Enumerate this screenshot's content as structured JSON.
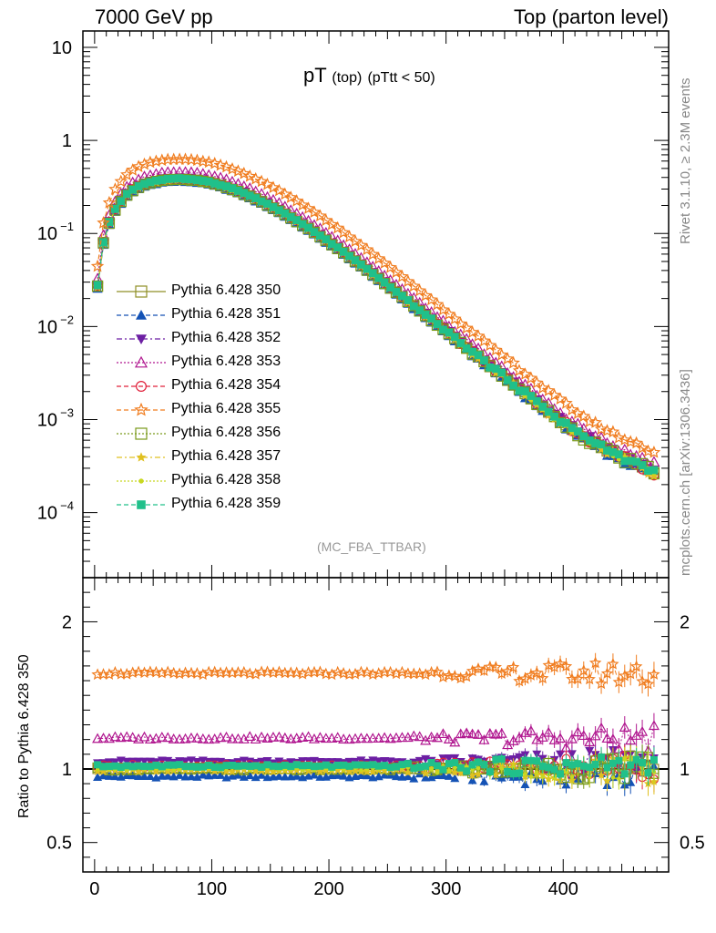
{
  "header": {
    "left": "7000 GeV pp",
    "right": "Top (parton level)"
  },
  "side_text": {
    "rivet": "Rivet 3.1.10, ≥ 2.3M events",
    "mcplots": "mcplots.cern.ch [arXiv:1306.3436]"
  },
  "title": {
    "main": "pT",
    "sub1": "(top)",
    "sub2": "(pTtt < 50)"
  },
  "analysis_label": "(MC_FBA_TTBAR)",
  "ratio_ylabel": "Ratio to Pythia 6.428 350",
  "chart_data": [
    {
      "type": "line",
      "title": "pT (top) (pTtt < 50)",
      "xlabel": "",
      "ylabel": "",
      "yscale": "log",
      "xlim": [
        -10,
        490
      ],
      "ylim": [
        2e-05,
        15
      ],
      "x_ticks": [
        "0",
        "100",
        "200",
        "300",
        "400"
      ],
      "y_ticks": [
        "10",
        "1",
        "10^-1",
        "10^-2",
        "10^-3",
        "10^-4"
      ],
      "legend_placement": "left-middle",
      "reference": {
        "x": [
          2.5,
          7.5,
          12.5,
          17.5,
          22.5,
          27.5,
          32.5,
          37.5,
          42.5,
          47.5,
          52.5,
          57.5,
          62.5,
          67.5,
          72.5,
          77.5,
          82.5,
          87.5,
          92.5,
          97.5,
          102.5,
          107.5,
          112.5,
          117.5,
          122.5,
          127.5,
          132.5,
          137.5,
          142.5,
          147.5,
          152.5,
          157.5,
          162.5,
          167.5,
          172.5,
          177.5,
          182.5,
          187.5,
          192.5,
          197.5,
          202.5,
          207.5,
          212.5,
          217.5,
          222.5,
          227.5,
          232.5,
          237.5,
          242.5,
          247.5,
          252.5,
          257.5,
          262.5,
          267.5,
          272.5,
          277.5,
          282.5,
          287.5,
          292.5,
          297.5,
          302.5,
          307.5,
          312.5,
          317.5,
          322.5,
          327.5,
          332.5,
          337.5,
          342.5,
          347.5,
          352.5,
          357.5,
          362.5,
          367.5,
          372.5,
          377.5,
          382.5,
          387.5,
          392.5,
          397.5,
          402.5,
          407.5,
          412.5,
          417.5,
          422.5,
          427.5,
          432.5,
          437.5,
          442.5,
          447.5,
          452.5,
          457.5,
          462.5,
          467.5,
          472.5,
          477.5
        ],
        "y": [
          0.027,
          0.079,
          0.13,
          0.18,
          0.22,
          0.26,
          0.29,
          0.315,
          0.335,
          0.35,
          0.36,
          0.37,
          0.375,
          0.378,
          0.38,
          0.378,
          0.375,
          0.37,
          0.362,
          0.352,
          0.34,
          0.327,
          0.313,
          0.298,
          0.282,
          0.266,
          0.25,
          0.234,
          0.218,
          0.203,
          0.188,
          0.174,
          0.16,
          0.147,
          0.135,
          0.123,
          0.112,
          0.102,
          0.093,
          0.084,
          0.076,
          0.069,
          0.062,
          0.056,
          0.05,
          0.045,
          0.0405,
          0.0363,
          0.0325,
          0.029,
          0.026,
          0.0232,
          0.0207,
          0.0185,
          0.0165,
          0.0147,
          0.0131,
          0.0117,
          0.0104,
          0.0093,
          0.0083,
          0.0074,
          0.0066,
          0.0059,
          0.0052,
          0.0047,
          0.0042,
          0.0037,
          0.0033,
          0.003,
          0.0027,
          0.0024,
          0.0021,
          0.0019,
          0.0017,
          0.0015,
          0.00135,
          0.0012,
          0.00108,
          0.00097,
          0.00088,
          0.00079,
          0.00072,
          0.00065,
          0.00059,
          0.00054,
          0.0005,
          0.00046,
          0.00043,
          0.0004,
          0.00037,
          0.00035,
          0.00033,
          0.00031,
          0.00029,
          0.00027
        ]
      },
      "series": [
        {
          "name": "Pythia 6.428 350",
          "color": "#8f8f26",
          "marker": "open-square",
          "dash": "solid",
          "ratio": 1.0
        },
        {
          "name": "Pythia 6.428 351",
          "color": "#1452b5",
          "marker": "filled-triangle-up",
          "dash": "dashed",
          "ratio": 0.95
        },
        {
          "name": "Pythia 6.428 352",
          "color": "#6c1fa3",
          "marker": "filled-triangle-down",
          "dash": "dashdot",
          "ratio": 1.05
        },
        {
          "name": "Pythia 6.428 353",
          "color": "#b0168f",
          "marker": "open-triangle-up",
          "dash": "dotted",
          "ratio": 1.21
        },
        {
          "name": "Pythia 6.428 354",
          "color": "#e0203a",
          "marker": "open-circle",
          "dash": "dashed",
          "ratio": 1.02
        },
        {
          "name": "Pythia 6.428 355",
          "color": "#f07c1e",
          "marker": "open-star",
          "dash": "dashed",
          "ratio": 1.65
        },
        {
          "name": "Pythia 6.428 356",
          "color": "#7a9a1a",
          "marker": "open-square",
          "dash": "dotted",
          "ratio": 1.0
        },
        {
          "name": "Pythia 6.428 357",
          "color": "#e0c020",
          "marker": "small-star",
          "dash": "dashdot",
          "ratio": 0.99
        },
        {
          "name": "Pythia 6.428 358",
          "color": "#c8d820",
          "marker": "small-dot",
          "dash": "dotted",
          "ratio": 1.0
        },
        {
          "name": "Pythia 6.428 359",
          "color": "#20c08a",
          "marker": "filled-square",
          "dash": "dashed",
          "ratio": 1.02
        }
      ]
    },
    {
      "type": "line",
      "title": "",
      "xlabel": "",
      "ylabel": "Ratio to Pythia 6.428 350",
      "xlim": [
        -10,
        490
      ],
      "ylim": [
        0.3,
        2.3
      ],
      "x_ticks": [
        "0",
        "100",
        "200",
        "300",
        "400"
      ],
      "y_ticks": [
        "2",
        "1",
        "0.5"
      ],
      "reference_line": 1
    }
  ]
}
